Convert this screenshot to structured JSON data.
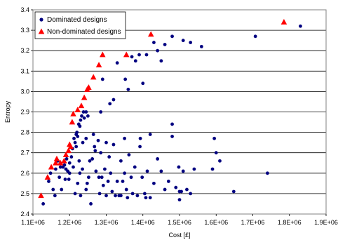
{
  "chart_data": {
    "type": "scatter",
    "title": "",
    "xlabel": "Cost [£]",
    "ylabel": "Entropy",
    "xlim": [
      1100000,
      1900000
    ],
    "ylim": [
      2.4,
      3.4
    ],
    "x_ticks": [
      1100000,
      1200000,
      1300000,
      1400000,
      1500000,
      1600000,
      1700000,
      1800000,
      1900000
    ],
    "x_tick_labels": [
      "1.1E+06",
      "1.2E+06",
      "1.3E+06",
      "1.4E+06",
      "1.5E+06",
      "1.6E+06",
      "1.7E+06",
      "1.8E+06",
      "1.9E+06"
    ],
    "y_ticks": [
      2.4,
      2.5,
      2.6,
      2.7,
      2.8,
      2.9,
      3.0,
      3.1,
      3.2,
      3.3,
      3.4
    ],
    "y_tick_labels": [
      "2.4",
      "2.5",
      "2.6",
      "2.7",
      "2.8",
      "2.9",
      "3.0",
      "3.1",
      "3.2",
      "3.3",
      "3.4"
    ],
    "grid": "horizontal",
    "legend_position": "top-left",
    "series": [
      {
        "name": "Dominated designs",
        "marker": "circle",
        "color": "#000080",
        "points": [
          [
            1128000,
            2.45
          ],
          [
            1143000,
            2.56
          ],
          [
            1148000,
            2.6
          ],
          [
            1155000,
            2.52
          ],
          [
            1160000,
            2.49
          ],
          [
            1162000,
            2.62
          ],
          [
            1168000,
            2.66
          ],
          [
            1172000,
            2.58
          ],
          [
            1178000,
            2.52
          ],
          [
            1182000,
            2.63
          ],
          [
            1186000,
            2.64
          ],
          [
            1190000,
            2.62
          ],
          [
            1192000,
            2.67
          ],
          [
            1195000,
            2.61
          ],
          [
            1198000,
            2.57
          ],
          [
            1200000,
            2.65
          ],
          [
            1205000,
            2.68
          ],
          [
            1208000,
            2.72
          ],
          [
            1212000,
            2.77
          ],
          [
            1215000,
            2.75
          ],
          [
            1218000,
            2.79
          ],
          [
            1220000,
            2.8
          ],
          [
            1222000,
            2.78
          ],
          [
            1225000,
            2.84
          ],
          [
            1228000,
            2.83
          ],
          [
            1230000,
            2.86
          ],
          [
            1233000,
            2.88
          ],
          [
            1238000,
            2.9
          ],
          [
            1240000,
            2.87
          ],
          [
            1245000,
            2.9
          ],
          [
            1250000,
            2.88
          ],
          [
            1215000,
            2.5
          ],
          [
            1222000,
            2.55
          ],
          [
            1228000,
            2.6
          ],
          [
            1235000,
            2.62
          ],
          [
            1245000,
            2.52
          ],
          [
            1252000,
            2.58
          ],
          [
            1258000,
            2.45
          ],
          [
            1262000,
            2.67
          ],
          [
            1268000,
            2.73
          ],
          [
            1272000,
            2.61
          ],
          [
            1278000,
            2.76
          ],
          [
            1282000,
            2.5
          ],
          [
            1285000,
            2.7
          ],
          [
            1288000,
            2.58
          ],
          [
            1292000,
            2.54
          ],
          [
            1296000,
            2.62
          ],
          [
            1300000,
            2.49
          ],
          [
            1305000,
            2.56
          ],
          [
            1308000,
            2.68
          ],
          [
            1312000,
            2.6
          ],
          [
            1316000,
            2.51
          ],
          [
            1320000,
            2.74
          ],
          [
            1325000,
            2.49
          ],
          [
            1330000,
            2.56
          ],
          [
            1335000,
            2.49
          ],
          [
            1340000,
            2.66
          ],
          [
            1345000,
            2.56
          ],
          [
            1350000,
            2.6
          ],
          [
            1355000,
            2.52
          ],
          [
            1358000,
            2.48
          ],
          [
            1362000,
            2.69
          ],
          [
            1368000,
            2.58
          ],
          [
            1372000,
            2.5
          ],
          [
            1378000,
            2.63
          ],
          [
            1385000,
            2.49
          ],
          [
            1392000,
            2.73
          ],
          [
            1398000,
            2.58
          ],
          [
            1405000,
            2.5
          ],
          [
            1412000,
            2.61
          ],
          [
            1420000,
            2.48
          ],
          [
            1430000,
            2.55
          ],
          [
            1440000,
            2.67
          ],
          [
            1450000,
            2.61
          ],
          [
            1460000,
            2.52
          ],
          [
            1470000,
            2.56
          ],
          [
            1480000,
            2.84
          ],
          [
            1490000,
            2.53
          ],
          [
            1500000,
            2.47
          ],
          [
            1510000,
            2.61
          ],
          [
            1520000,
            2.52
          ],
          [
            1530000,
            2.5
          ],
          [
            1540000,
            2.62
          ],
          [
            1590000,
            2.62
          ],
          [
            1595000,
            2.77
          ],
          [
            1600000,
            2.7
          ],
          [
            1610000,
            2.66
          ],
          [
            1648000,
            2.51
          ],
          [
            1740000,
            2.6
          ],
          [
            1255000,
            2.66
          ],
          [
            1265000,
            2.79
          ],
          [
            1270000,
            2.71
          ],
          [
            1280000,
            2.58
          ],
          [
            1290000,
            3.06
          ],
          [
            1300000,
            2.75
          ],
          [
            1310000,
            2.94
          ],
          [
            1320000,
            2.96
          ],
          [
            1330000,
            3.14
          ],
          [
            1352000,
            3.06
          ],
          [
            1360000,
            3.01
          ],
          [
            1370000,
            3.17
          ],
          [
            1380000,
            3.15
          ],
          [
            1390000,
            3.18
          ],
          [
            1400000,
            3.04
          ],
          [
            1410000,
            3.18
          ],
          [
            1420000,
            2.79
          ],
          [
            1430000,
            3.24
          ],
          [
            1440000,
            3.2
          ],
          [
            1450000,
            3.15
          ],
          [
            1460000,
            3.23
          ],
          [
            1480000,
            3.27
          ],
          [
            1500000,
            2.51
          ],
          [
            1510000,
            3.25
          ],
          [
            1530000,
            3.24
          ],
          [
            1560000,
            3.22
          ],
          [
            1707000,
            3.27
          ],
          [
            1830000,
            3.32
          ],
          [
            1230000,
            2.49
          ],
          [
            1245000,
            2.77
          ],
          [
            1285000,
            2.9
          ],
          [
            1340000,
            2.49
          ],
          [
            1350000,
            2.77
          ],
          [
            1393000,
            2.77
          ],
          [
            1408000,
            2.48
          ],
          [
            1480000,
            2.78
          ],
          [
            1498000,
            2.63
          ],
          [
            1505000,
            2.51
          ],
          [
            1175000,
            2.63
          ],
          [
            1188000,
            2.57
          ],
          [
            1200000,
            2.6
          ],
          [
            1210000,
            2.63
          ],
          [
            1218000,
            2.73
          ],
          [
            1226000,
            2.66
          ],
          [
            1236000,
            2.75
          ],
          [
            1248000,
            2.55
          ]
        ]
      },
      {
        "name": "Non-dominated designs",
        "marker": "triangle",
        "color": "#ff0000",
        "points": [
          [
            1122000,
            2.49
          ],
          [
            1140000,
            2.58
          ],
          [
            1150000,
            2.63
          ],
          [
            1162000,
            2.65
          ],
          [
            1165000,
            2.67
          ],
          [
            1175000,
            2.65
          ],
          [
            1185000,
            2.66
          ],
          [
            1190000,
            2.69
          ],
          [
            1197000,
            2.71
          ],
          [
            1200000,
            2.74
          ],
          [
            1203000,
            2.73
          ],
          [
            1207000,
            2.85
          ],
          [
            1210000,
            2.89
          ],
          [
            1222000,
            2.91
          ],
          [
            1232000,
            2.93
          ],
          [
            1240000,
            2.97
          ],
          [
            1248000,
            3.01
          ],
          [
            1252000,
            3.02
          ],
          [
            1265000,
            3.07
          ],
          [
            1280000,
            3.13
          ],
          [
            1290000,
            3.18
          ],
          [
            1355000,
            3.18
          ],
          [
            1422000,
            3.28
          ],
          [
            1785000,
            3.34
          ]
        ]
      }
    ]
  }
}
